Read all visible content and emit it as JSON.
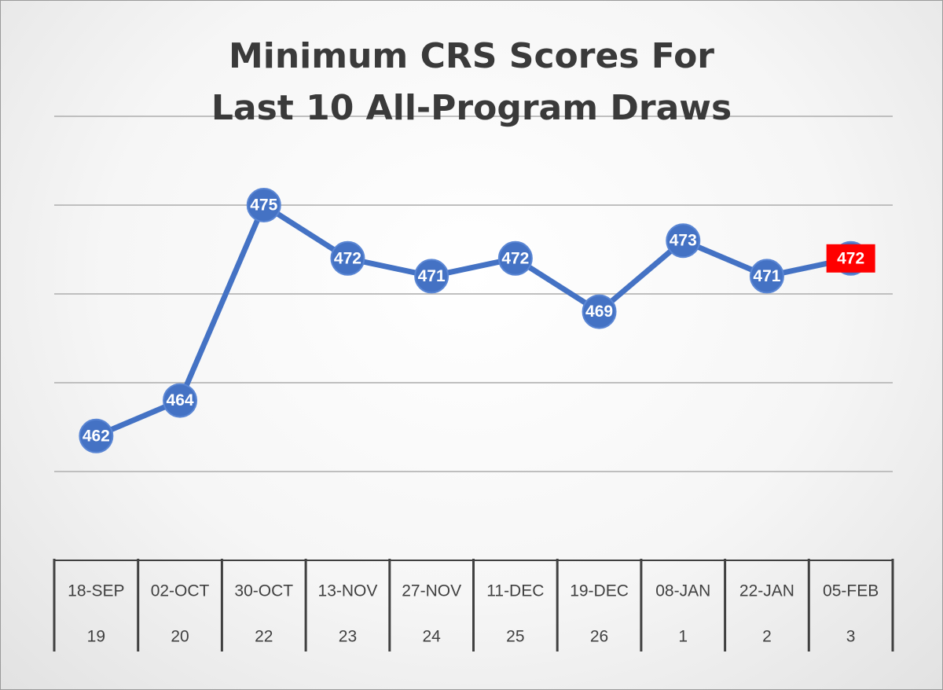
{
  "chart_data": {
    "type": "line",
    "title": "Minimum CRS Scores For\nLast 10 All-Program Draws",
    "categories": [
      "18-SEP",
      "02-OCT",
      "30-OCT",
      "13-NOV",
      "27-NOV",
      "11-DEC",
      "19-DEC",
      "08-JAN",
      "22-JAN",
      "05-FEB"
    ],
    "sub_categories": [
      "19",
      "20",
      "22",
      "23",
      "24",
      "25",
      "26",
      "1",
      "2",
      "3"
    ],
    "series": [
      {
        "color": "#4472c4",
        "values": [
          462,
          464,
          475,
          472,
          471,
          472,
          469,
          473,
          471,
          472
        ]
      }
    ],
    "label_colors": [
      "#4472c4",
      "#4472c4",
      "#4472c4",
      "#4472c4",
      "#4472c4",
      "#4472c4",
      "#4472c4",
      "#4472c4",
      "#4472c4",
      "#ff0000"
    ],
    "ylim": [
      460,
      480
    ],
    "yticks": [
      460,
      465,
      470,
      475,
      480
    ],
    "grid": true
  }
}
